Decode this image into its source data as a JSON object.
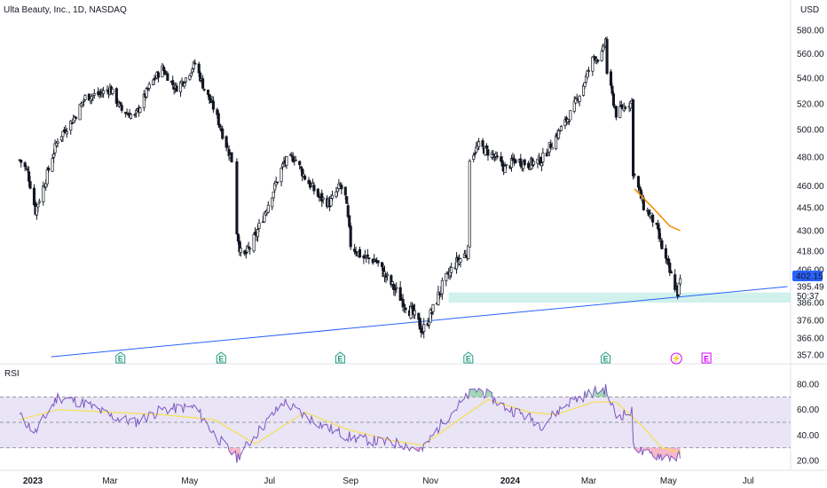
{
  "header": {
    "symbol_title": "Ulta Beauty, Inc., 1D, NASDAQ",
    "currency": "USD"
  },
  "colors": {
    "up": "#ffffff",
    "down": "#131722",
    "wick": "#131722",
    "trendline": "#2962ff",
    "support_zone": "#b2e7df",
    "orange_ma": "#f28c00",
    "rsi_line": "#7e57c2",
    "rsi_ma": "#f5e050",
    "rsi_band": "#e9e4f6",
    "overbought_fill": "#77c794",
    "oversold_fill": "#f39ab1",
    "price_tag_bg": "#2962ff",
    "earnings": "#1e9b7a",
    "dividend": "#d500f9"
  },
  "price_axis": {
    "ticks": [
      "580.00",
      "560.00",
      "540.00",
      "520.00",
      "500.00",
      "480.00",
      "460.00",
      "445.00",
      "430.00",
      "418.00",
      "406.00",
      "395.49",
      "386.00",
      "376.00",
      "366.00",
      "357.00"
    ],
    "current_price": "402.15",
    "countdown": "50:37"
  },
  "time_axis": {
    "labels": [
      {
        "text": "2023",
        "bold": true
      },
      {
        "text": "Mar",
        "bold": false
      },
      {
        "text": "May",
        "bold": false
      },
      {
        "text": "Jul",
        "bold": false
      },
      {
        "text": "Sep",
        "bold": false
      },
      {
        "text": "Nov",
        "bold": false
      },
      {
        "text": "2024",
        "bold": true
      },
      {
        "text": "Mar",
        "bold": false
      },
      {
        "text": "May",
        "bold": false
      },
      {
        "text": "Jul",
        "bold": false
      }
    ]
  },
  "event_badges": [
    {
      "type": "earnings",
      "label": "E"
    },
    {
      "type": "earnings",
      "label": "E"
    },
    {
      "type": "earnings",
      "label": "E"
    },
    {
      "type": "earnings",
      "label": "E"
    },
    {
      "type": "earnings",
      "label": "E"
    },
    {
      "type": "dividend",
      "label": "⚡"
    },
    {
      "type": "upcoming-earnings",
      "label": "E"
    }
  ],
  "rsi": {
    "title": "RSI",
    "ticks": [
      "80.00",
      "60.00",
      "40.00",
      "20.00"
    ],
    "upper": 70,
    "middle": 50,
    "lower": 30
  },
  "chart_data": {
    "type": "candlestick",
    "title": "Ulta Beauty, Inc., 1D, NASDAQ",
    "currency": "USD",
    "ylim": [
      352,
      592
    ],
    "price_path": [
      [
        "2022-12-22",
        478
      ],
      [
        "2022-12-28",
        470
      ],
      [
        "2023-01-03",
        443
      ],
      [
        "2023-01-10",
        462
      ],
      [
        "2023-01-20",
        493
      ],
      [
        "2023-02-01",
        508
      ],
      [
        "2023-02-10",
        525
      ],
      [
        "2023-02-22",
        528
      ],
      [
        "2023-03-01",
        532
      ],
      [
        "2023-03-10",
        515
      ],
      [
        "2023-03-20",
        510
      ],
      [
        "2023-04-01",
        535
      ],
      [
        "2023-04-10",
        548
      ],
      [
        "2023-04-20",
        532
      ],
      [
        "2023-04-28",
        540
      ],
      [
        "2023-05-05",
        552
      ],
      [
        "2023-05-12",
        532
      ],
      [
        "2023-05-20",
        515
      ],
      [
        "2023-05-26",
        497
      ],
      [
        "2023-06-02",
        478
      ],
      [
        "2023-06-06",
        430
      ],
      [
        "2023-06-10",
        412
      ],
      [
        "2023-06-20",
        426
      ],
      [
        "2023-07-01",
        450
      ],
      [
        "2023-07-12",
        476
      ],
      [
        "2023-07-20",
        480
      ],
      [
        "2023-07-28",
        466
      ],
      [
        "2023-08-08",
        452
      ],
      [
        "2023-08-16",
        448
      ],
      [
        "2023-08-24",
        460
      ],
      [
        "2023-08-28",
        452
      ],
      [
        "2023-09-01",
        422
      ],
      [
        "2023-09-10",
        414
      ],
      [
        "2023-09-20",
        412
      ],
      [
        "2023-10-01",
        398
      ],
      [
        "2023-10-10",
        388
      ],
      [
        "2023-10-20",
        378
      ],
      [
        "2023-10-26",
        370
      ],
      [
        "2023-11-03",
        382
      ],
      [
        "2023-11-10",
        396
      ],
      [
        "2023-11-20",
        410
      ],
      [
        "2023-11-30",
        418
      ],
      [
        "2023-12-01",
        480
      ],
      [
        "2023-12-08",
        488
      ],
      [
        "2023-12-18",
        482
      ],
      [
        "2023-12-28",
        472
      ],
      [
        "2024-01-05",
        478
      ],
      [
        "2024-01-15",
        475
      ],
      [
        "2024-01-25",
        478
      ],
      [
        "2024-02-05",
        495
      ],
      [
        "2024-02-15",
        510
      ],
      [
        "2024-02-25",
        532
      ],
      [
        "2024-03-05",
        558
      ],
      [
        "2024-03-10",
        555
      ],
      [
        "2024-03-14",
        572
      ],
      [
        "2024-03-15",
        545
      ],
      [
        "2024-03-22",
        512
      ],
      [
        "2024-03-28",
        518
      ],
      [
        "2024-04-03",
        522
      ],
      [
        "2024-04-04",
        470
      ],
      [
        "2024-04-12",
        446
      ],
      [
        "2024-04-20",
        436
      ],
      [
        "2024-04-26",
        420
      ],
      [
        "2024-05-02",
        404
      ],
      [
        "2024-05-08",
        392
      ],
      [
        "2024-05-11",
        402
      ]
    ],
    "orange_line": [
      [
        "2024-04-05",
        458
      ],
      [
        "2024-04-20",
        444
      ],
      [
        "2024-05-02",
        433
      ],
      [
        "2024-05-10",
        430
      ]
    ],
    "support_zone": {
      "from": "2023-11-15",
      "to": "2024-07-31",
      "low": 386,
      "high": 392
    },
    "trendline": {
      "from": [
        "2023-01-15",
        356
      ],
      "to": [
        "2024-07-31",
        395.49
      ]
    },
    "rsi_path": [
      [
        "2022-12-22",
        55
      ],
      [
        "2023-01-03",
        42
      ],
      [
        "2023-01-20",
        70
      ],
      [
        "2023-02-10",
        65
      ],
      [
        "2023-03-01",
        55
      ],
      [
        "2023-03-20",
        50
      ],
      [
        "2023-04-10",
        60
      ],
      [
        "2023-05-05",
        62
      ],
      [
        "2023-05-20",
        40
      ],
      [
        "2023-06-06",
        22
      ],
      [
        "2023-06-20",
        40
      ],
      [
        "2023-07-12",
        66
      ],
      [
        "2023-07-28",
        55
      ],
      [
        "2023-08-16",
        45
      ],
      [
        "2023-09-01",
        38
      ],
      [
        "2023-09-20",
        35
      ],
      [
        "2023-10-10",
        33
      ],
      [
        "2023-10-26",
        28
      ],
      [
        "2023-11-10",
        50
      ],
      [
        "2023-12-01",
        72
      ],
      [
        "2023-12-08",
        76
      ],
      [
        "2023-12-28",
        62
      ],
      [
        "2024-01-15",
        54
      ],
      [
        "2024-01-25",
        48
      ],
      [
        "2024-02-15",
        66
      ],
      [
        "2024-03-05",
        74
      ],
      [
        "2024-03-14",
        76
      ],
      [
        "2024-03-22",
        55
      ],
      [
        "2024-04-03",
        58
      ],
      [
        "2024-04-04",
        34
      ],
      [
        "2024-04-12",
        25
      ],
      [
        "2024-04-26",
        24
      ],
      [
        "2024-05-08",
        22
      ],
      [
        "2024-05-11",
        25
      ]
    ],
    "rsi_ma_path": [
      [
        "2022-12-22",
        52
      ],
      [
        "2023-01-20",
        60
      ],
      [
        "2023-03-01",
        58
      ],
      [
        "2023-04-10",
        56
      ],
      [
        "2023-05-20",
        52
      ],
      [
        "2023-06-20",
        33
      ],
      [
        "2023-07-28",
        58
      ],
      [
        "2023-08-28",
        45
      ],
      [
        "2023-10-01",
        36
      ],
      [
        "2023-10-26",
        32
      ],
      [
        "2023-11-20",
        50
      ],
      [
        "2023-12-15",
        68
      ],
      [
        "2024-01-15",
        58
      ],
      [
        "2024-02-05",
        56
      ],
      [
        "2024-03-05",
        66
      ],
      [
        "2024-03-22",
        66
      ],
      [
        "2024-04-10",
        48
      ],
      [
        "2024-04-26",
        30
      ],
      [
        "2024-05-11",
        26
      ]
    ]
  }
}
